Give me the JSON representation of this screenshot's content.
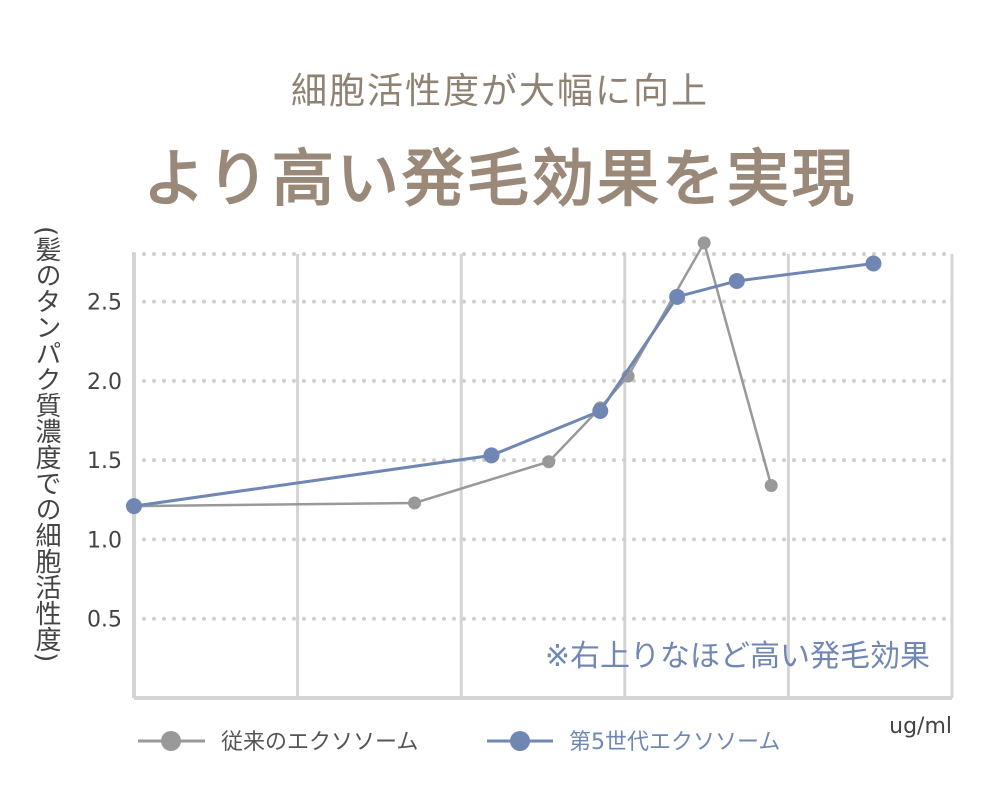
{
  "header": {
    "subtitle": "細胞活性度が大幅に向上",
    "title": "より高い発毛効果を実現"
  },
  "chart_data": {
    "type": "line",
    "ylabel": "(髪のタンパク質濃度での細胞活性度)",
    "xlabel": "ug/ml",
    "ylim": [
      0,
      2.8
    ],
    "yticks": [
      {
        "value": 0.5,
        "label": "0.5"
      },
      {
        "value": 1.0,
        "label": "1.0"
      },
      {
        "value": 1.5,
        "label": "1.5"
      },
      {
        "value": 2.0,
        "label": "2.0"
      },
      {
        "value": 2.5,
        "label": "2.5"
      }
    ],
    "annotation": "※右上りなほど高い発毛効果",
    "legend_position": "bottom",
    "series": [
      {
        "name": "従来のエクソソーム",
        "color": "#999999",
        "points": [
          {
            "x": 0.0,
            "y": 1.21
          },
          {
            "x": 3.43,
            "y": 1.23
          },
          {
            "x": 5.07,
            "y": 1.49
          },
          {
            "x": 5.7,
            "y": 1.83
          },
          {
            "x": 6.04,
            "y": 2.03
          },
          {
            "x": 6.97,
            "y": 2.87
          },
          {
            "x": 7.79,
            "y": 1.34
          }
        ]
      },
      {
        "name": "第5世代エクソソーム",
        "color": "#7087b4",
        "points": [
          {
            "x": 0.0,
            "y": 1.21
          },
          {
            "x": 4.37,
            "y": 1.53
          },
          {
            "x": 5.7,
            "y": 1.81
          },
          {
            "x": 6.64,
            "y": 2.53
          },
          {
            "x": 7.37,
            "y": 2.63
          },
          {
            "x": 9.04,
            "y": 2.74
          }
        ]
      }
    ]
  }
}
